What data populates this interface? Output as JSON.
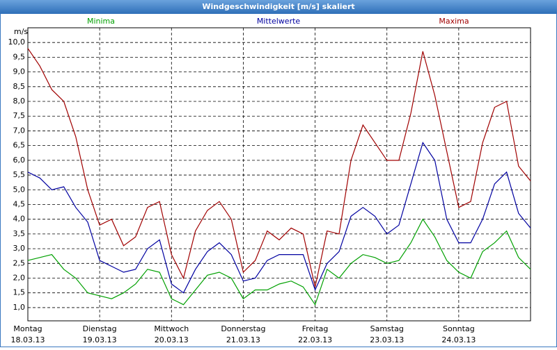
{
  "chart_data": {
    "type": "line",
    "title": "Windgeschwindigkeit [m/s] skaliert",
    "y_label": "m/s",
    "x": [
      0,
      4,
      8,
      12,
      16,
      20,
      24,
      28,
      32,
      36,
      40,
      44,
      48,
      52,
      56,
      60,
      64,
      68,
      72,
      76,
      80,
      84,
      88,
      92,
      96,
      100,
      104,
      108,
      112,
      116,
      120,
      124,
      128,
      132,
      136,
      140,
      144,
      148,
      152,
      156,
      160,
      164,
      168
    ],
    "xlim": [
      0,
      168
    ],
    "xticks": [
      {
        "value": 0,
        "label": "Montag",
        "date": "18.03.13"
      },
      {
        "value": 24,
        "label": "Dienstag",
        "date": "19.03.13"
      },
      {
        "value": 48,
        "label": "Mittwoch",
        "date": "20.03.13"
      },
      {
        "value": 72,
        "label": "Donnerstag",
        "date": "21.03.13"
      },
      {
        "value": 96,
        "label": "Freitag",
        "date": "22.03.13"
      },
      {
        "value": 120,
        "label": "Samstag",
        "date": "23.03.13"
      },
      {
        "value": 144,
        "label": "Sonntag",
        "date": "24.03.13"
      }
    ],
    "ylim": [
      0.55,
      10.5
    ],
    "yticks": [
      {
        "value": 1,
        "label": "1,0"
      },
      {
        "value": 1.5,
        "label": "1,5"
      },
      {
        "value": 2,
        "label": "2,0"
      },
      {
        "value": 2.5,
        "label": "2,5"
      },
      {
        "value": 3,
        "label": "3,0"
      },
      {
        "value": 3.5,
        "label": "3,5"
      },
      {
        "value": 4,
        "label": "4,0"
      },
      {
        "value": 4.5,
        "label": "4,5"
      },
      {
        "value": 5,
        "label": "5,0"
      },
      {
        "value": 5.5,
        "label": "5,5"
      },
      {
        "value": 6,
        "label": "6,0"
      },
      {
        "value": 6.5,
        "label": "6,5"
      },
      {
        "value": 7,
        "label": "7,0"
      },
      {
        "value": 7.5,
        "label": "7,5"
      },
      {
        "value": 8,
        "label": "8,0"
      },
      {
        "value": 8.5,
        "label": "8,5"
      },
      {
        "value": 9,
        "label": "9,0"
      },
      {
        "value": 9.5,
        "label": "9,5"
      },
      {
        "value": 10,
        "label": "10,0"
      }
    ],
    "grid": true,
    "series": [
      {
        "name": "Minima",
        "color": "#00a000",
        "values": [
          2.6,
          2.7,
          2.8,
          2.3,
          2.0,
          1.5,
          1.4,
          1.3,
          1.5,
          1.8,
          2.3,
          2.2,
          1.3,
          1.1,
          1.6,
          2.1,
          2.2,
          2.0,
          1.3,
          1.6,
          1.6,
          1.8,
          1.9,
          1.7,
          1.1,
          2.3,
          2.0,
          2.5,
          2.8,
          2.7,
          2.5,
          2.6,
          3.2,
          4.0,
          3.4,
          2.6,
          2.2,
          2.0,
          2.9,
          3.2,
          3.6,
          2.7,
          2.3
        ]
      },
      {
        "name": "Mittelwerte",
        "color": "#0000a0",
        "values": [
          5.6,
          5.4,
          5.0,
          5.1,
          4.4,
          3.9,
          2.6,
          2.4,
          2.2,
          2.3,
          3.0,
          3.3,
          1.8,
          1.5,
          2.3,
          2.9,
          3.2,
          2.8,
          1.9,
          2.0,
          2.6,
          2.8,
          2.8,
          2.8,
          1.6,
          2.5,
          2.9,
          4.1,
          4.4,
          4.1,
          3.5,
          3.8,
          5.2,
          6.6,
          6.0,
          4.0,
          3.2,
          3.2,
          4.0,
          5.2,
          5.6,
          4.2,
          3.7
        ]
      },
      {
        "name": "Maxima",
        "color": "#a00000",
        "values": [
          9.8,
          9.2,
          8.4,
          8.0,
          6.8,
          5.0,
          3.8,
          4.0,
          3.1,
          3.4,
          4.4,
          4.6,
          2.8,
          2.0,
          3.6,
          4.3,
          4.6,
          4.0,
          2.2,
          2.6,
          3.6,
          3.3,
          3.7,
          3.5,
          1.7,
          3.6,
          3.5,
          6.0,
          7.2,
          6.6,
          6.0,
          6.0,
          7.6,
          9.7,
          8.2,
          6.3,
          4.4,
          4.6,
          6.6,
          7.8,
          8.0,
          5.8,
          5.3
        ]
      }
    ]
  }
}
